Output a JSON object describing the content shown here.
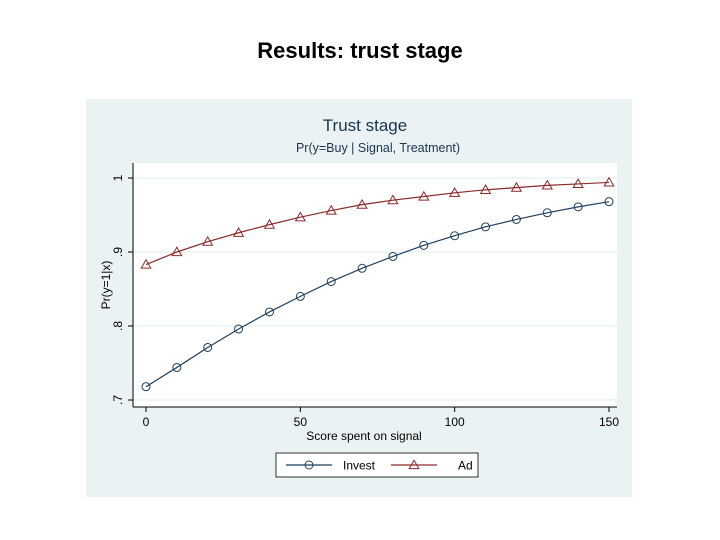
{
  "slide": {
    "title": "Results: trust stage"
  },
  "chart_data": {
    "type": "line",
    "title": "Trust stage",
    "subtitle": "Pr(y=Buy | Signal, Treatment)",
    "xlabel": "Score spent on signal",
    "ylabel": "Pr(y=1|x)",
    "xlim": [
      0,
      150
    ],
    "ylim": [
      0.7,
      1.0
    ],
    "x_ticks": [
      0,
      50,
      100,
      150
    ],
    "x_tick_labels": [
      "0",
      "50",
      "100",
      "150"
    ],
    "y_ticks": [
      0.7,
      0.8,
      0.9,
      1.0
    ],
    "y_tick_labels": [
      ".7",
      ".8",
      ".9",
      "1"
    ],
    "grid": true,
    "legend_position": "bottom",
    "x": [
      0,
      10,
      20,
      30,
      40,
      50,
      60,
      70,
      80,
      90,
      100,
      110,
      120,
      130,
      140,
      150
    ],
    "series": [
      {
        "name": "Invest",
        "marker": "circle",
        "color": "#1f3f5c",
        "values": [
          0.718,
          0.744,
          0.771,
          0.796,
          0.819,
          0.84,
          0.86,
          0.878,
          0.894,
          0.909,
          0.922,
          0.934,
          0.944,
          0.953,
          0.961,
          0.968
        ]
      },
      {
        "name": "Ad",
        "marker": "triangle",
        "color": "#8b2a2a",
        "values": [
          0.883,
          0.9,
          0.914,
          0.926,
          0.937,
          0.947,
          0.956,
          0.964,
          0.97,
          0.975,
          0.98,
          0.984,
          0.987,
          0.99,
          0.992,
          0.994
        ]
      }
    ]
  }
}
